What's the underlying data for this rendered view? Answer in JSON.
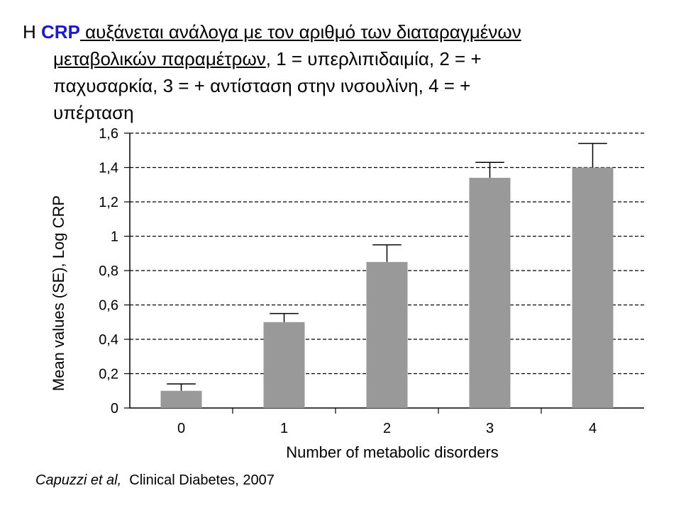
{
  "heading": {
    "prefix": "Η ",
    "marker": "CRP",
    "underlined_1": " αυξάνεται ανάλογα με τον αριθμό των διαταραγμένων",
    "underlined_2": "μεταβολικών παραμέτρων",
    "rest_2": ", 1 = υπερλιπιδαιμία, 2 = +",
    "line_3": "παχυσαρκία, 3 = + αντίσταση στην ινσουλίνη, 4 = +",
    "line_4": "υπέρταση"
  },
  "colors": {
    "marker": "#1a1ad6",
    "bar": "#999999",
    "grid": "#000000"
  },
  "chart_data": {
    "type": "bar",
    "categories": [
      "0",
      "1",
      "2",
      "3",
      "4"
    ],
    "values": [
      0.1,
      0.5,
      0.85,
      1.34,
      1.4
    ],
    "errors": [
      0.04,
      0.05,
      0.1,
      0.09,
      0.14
    ],
    "xlabel": "Number of metabolic disorders",
    "ylabel": "Mean values (SE), Log CRP",
    "ylim": [
      0,
      1.6
    ],
    "yticks": [
      "0",
      "0,2",
      "0,4",
      "0,6",
      "0,8",
      "1",
      "1,2",
      "1,4",
      "1,6"
    ],
    "grid": true,
    "grid_style": "dashed"
  },
  "citation": {
    "authors": "Capuzzi et al,",
    "source": "  Clinical Diabetes, 2007"
  }
}
